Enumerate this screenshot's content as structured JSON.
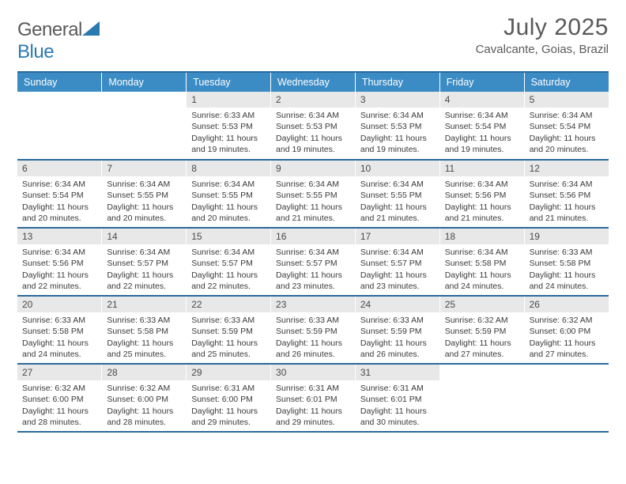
{
  "brand": {
    "part1": "General",
    "part2": "Blue"
  },
  "title": "July 2025",
  "location": "Cavalcante, Goias, Brazil",
  "colors": {
    "header_bg": "#3b8bc4",
    "rule": "#2a6a9b",
    "daynum_bg": "#e8e8e8",
    "text": "#3a3a3a",
    "title_text": "#5a5a5a"
  },
  "weekdays": [
    "Sunday",
    "Monday",
    "Tuesday",
    "Wednesday",
    "Thursday",
    "Friday",
    "Saturday"
  ],
  "weeks": [
    [
      null,
      null,
      {
        "n": "1",
        "sr": "6:33 AM",
        "ss": "5:53 PM",
        "dl": "11 hours and 19 minutes."
      },
      {
        "n": "2",
        "sr": "6:34 AM",
        "ss": "5:53 PM",
        "dl": "11 hours and 19 minutes."
      },
      {
        "n": "3",
        "sr": "6:34 AM",
        "ss": "5:53 PM",
        "dl": "11 hours and 19 minutes."
      },
      {
        "n": "4",
        "sr": "6:34 AM",
        "ss": "5:54 PM",
        "dl": "11 hours and 19 minutes."
      },
      {
        "n": "5",
        "sr": "6:34 AM",
        "ss": "5:54 PM",
        "dl": "11 hours and 20 minutes."
      }
    ],
    [
      {
        "n": "6",
        "sr": "6:34 AM",
        "ss": "5:54 PM",
        "dl": "11 hours and 20 minutes."
      },
      {
        "n": "7",
        "sr": "6:34 AM",
        "ss": "5:55 PM",
        "dl": "11 hours and 20 minutes."
      },
      {
        "n": "8",
        "sr": "6:34 AM",
        "ss": "5:55 PM",
        "dl": "11 hours and 20 minutes."
      },
      {
        "n": "9",
        "sr": "6:34 AM",
        "ss": "5:55 PM",
        "dl": "11 hours and 21 minutes."
      },
      {
        "n": "10",
        "sr": "6:34 AM",
        "ss": "5:55 PM",
        "dl": "11 hours and 21 minutes."
      },
      {
        "n": "11",
        "sr": "6:34 AM",
        "ss": "5:56 PM",
        "dl": "11 hours and 21 minutes."
      },
      {
        "n": "12",
        "sr": "6:34 AM",
        "ss": "5:56 PM",
        "dl": "11 hours and 21 minutes."
      }
    ],
    [
      {
        "n": "13",
        "sr": "6:34 AM",
        "ss": "5:56 PM",
        "dl": "11 hours and 22 minutes."
      },
      {
        "n": "14",
        "sr": "6:34 AM",
        "ss": "5:57 PM",
        "dl": "11 hours and 22 minutes."
      },
      {
        "n": "15",
        "sr": "6:34 AM",
        "ss": "5:57 PM",
        "dl": "11 hours and 22 minutes."
      },
      {
        "n": "16",
        "sr": "6:34 AM",
        "ss": "5:57 PM",
        "dl": "11 hours and 23 minutes."
      },
      {
        "n": "17",
        "sr": "6:34 AM",
        "ss": "5:57 PM",
        "dl": "11 hours and 23 minutes."
      },
      {
        "n": "18",
        "sr": "6:34 AM",
        "ss": "5:58 PM",
        "dl": "11 hours and 24 minutes."
      },
      {
        "n": "19",
        "sr": "6:33 AM",
        "ss": "5:58 PM",
        "dl": "11 hours and 24 minutes."
      }
    ],
    [
      {
        "n": "20",
        "sr": "6:33 AM",
        "ss": "5:58 PM",
        "dl": "11 hours and 24 minutes."
      },
      {
        "n": "21",
        "sr": "6:33 AM",
        "ss": "5:58 PM",
        "dl": "11 hours and 25 minutes."
      },
      {
        "n": "22",
        "sr": "6:33 AM",
        "ss": "5:59 PM",
        "dl": "11 hours and 25 minutes."
      },
      {
        "n": "23",
        "sr": "6:33 AM",
        "ss": "5:59 PM",
        "dl": "11 hours and 26 minutes."
      },
      {
        "n": "24",
        "sr": "6:33 AM",
        "ss": "5:59 PM",
        "dl": "11 hours and 26 minutes."
      },
      {
        "n": "25",
        "sr": "6:32 AM",
        "ss": "5:59 PM",
        "dl": "11 hours and 27 minutes."
      },
      {
        "n": "26",
        "sr": "6:32 AM",
        "ss": "6:00 PM",
        "dl": "11 hours and 27 minutes."
      }
    ],
    [
      {
        "n": "27",
        "sr": "6:32 AM",
        "ss": "6:00 PM",
        "dl": "11 hours and 28 minutes."
      },
      {
        "n": "28",
        "sr": "6:32 AM",
        "ss": "6:00 PM",
        "dl": "11 hours and 28 minutes."
      },
      {
        "n": "29",
        "sr": "6:31 AM",
        "ss": "6:00 PM",
        "dl": "11 hours and 29 minutes."
      },
      {
        "n": "30",
        "sr": "6:31 AM",
        "ss": "6:01 PM",
        "dl": "11 hours and 29 minutes."
      },
      {
        "n": "31",
        "sr": "6:31 AM",
        "ss": "6:01 PM",
        "dl": "11 hours and 30 minutes."
      },
      null,
      null
    ]
  ],
  "labels": {
    "sunrise": "Sunrise:",
    "sunset": "Sunset:",
    "daylight": "Daylight:"
  }
}
